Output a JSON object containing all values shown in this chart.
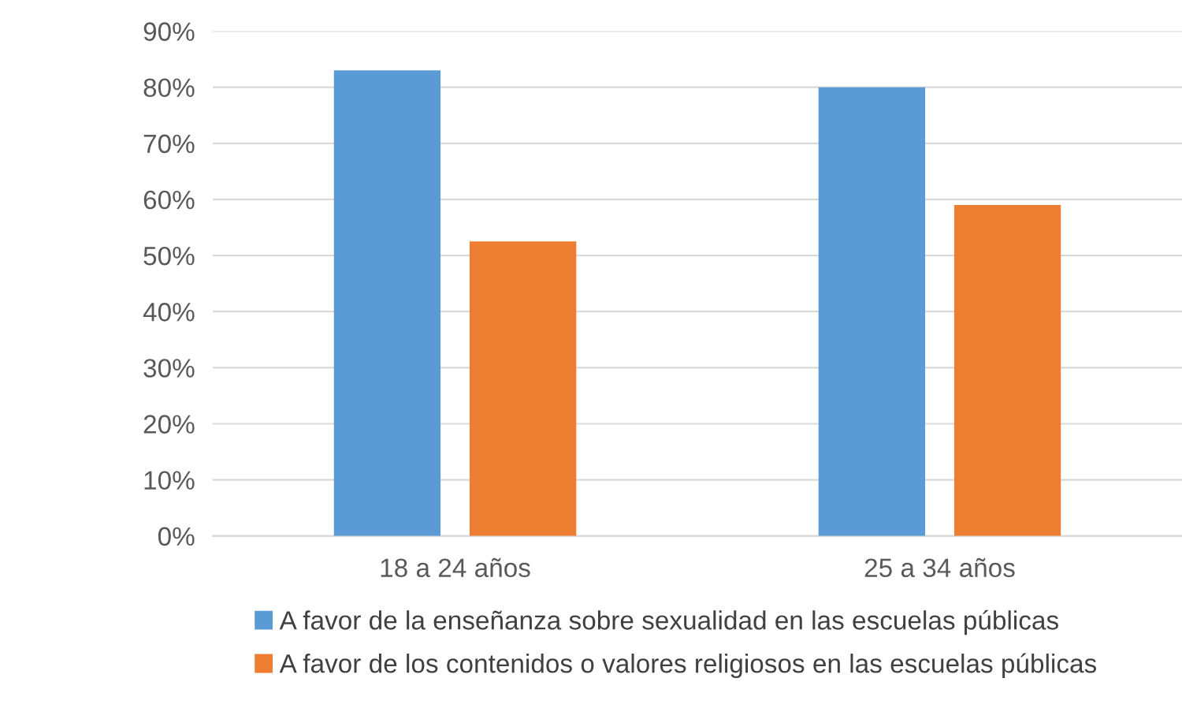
{
  "chart_data": {
    "type": "bar",
    "categories": [
      "18 a 24 años",
      "25 a 34 años"
    ],
    "series": [
      {
        "name": "A favor de la enseñanza sobre sexualidad en las escuelas públicas",
        "color": "#5b9bd5",
        "values": [
          83,
          80
        ]
      },
      {
        "name": "A favor de los contenidos o valores religiosos en las escuelas públicas",
        "color": "#ed7d31",
        "values": [
          52.5,
          59
        ]
      }
    ],
    "ylim": [
      0,
      90
    ],
    "yticks": [
      {
        "value": 0,
        "label": "0%"
      },
      {
        "value": 10,
        "label": "10%"
      },
      {
        "value": 20,
        "label": "20%"
      },
      {
        "value": 30,
        "label": "30%"
      },
      {
        "value": 40,
        "label": "40%"
      },
      {
        "value": 50,
        "label": "50%"
      },
      {
        "value": 60,
        "label": "60%"
      },
      {
        "value": 70,
        "label": "70%"
      },
      {
        "value": 80,
        "label": "80%"
      },
      {
        "value": 90,
        "label": "90%"
      }
    ],
    "grid": "y",
    "legend": "bottom"
  }
}
